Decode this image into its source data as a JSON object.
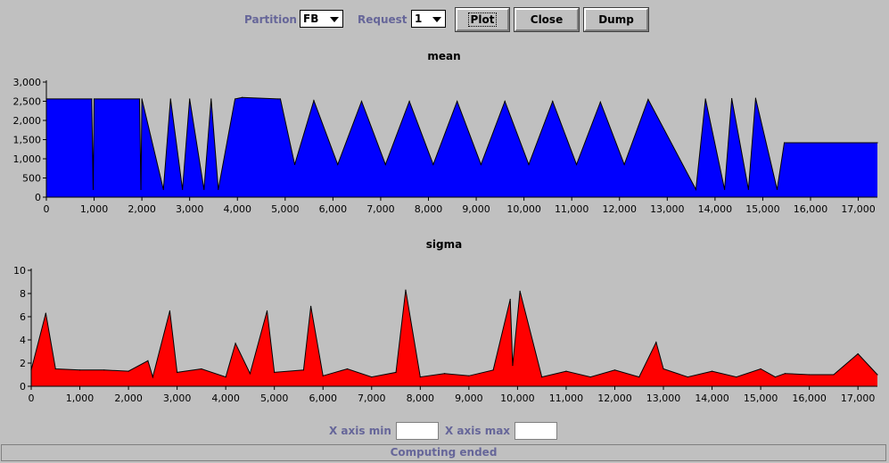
{
  "toolbar": {
    "partition_label": "Partition",
    "partition_value": "FB",
    "request_label": "Request",
    "request_value": "1",
    "plot_label": "Plot",
    "close_label": "Close",
    "dump_label": "Dump"
  },
  "xaxis": {
    "min_label": "X axis min",
    "max_label": "X axis max",
    "min_value": "",
    "max_value": ""
  },
  "status": "Computing ended",
  "colors": {
    "mean_fill": "#0000ff",
    "sigma_fill": "#ff0000",
    "line": "#000000",
    "label": "#666699"
  },
  "chart_data": [
    {
      "type": "area",
      "title": "mean",
      "xlabel": "",
      "ylabel": "",
      "xlim": [
        0,
        17400
      ],
      "ylim": [
        0,
        3000
      ],
      "xticks": [
        "0",
        "1,000",
        "2,000",
        "3,000",
        "4,000",
        "5,000",
        "6,000",
        "7,000",
        "8,000",
        "9,000",
        "10,000",
        "11,000",
        "12,000",
        "13,000",
        "14,000",
        "15,000",
        "16,000",
        "17,000"
      ],
      "yticks": [
        "0",
        "500",
        "1,000",
        "1,500",
        "2,000",
        "2,500",
        "3,000"
      ],
      "series": [
        {
          "x": [
            0,
            950,
            980,
            1000,
            1950,
            1980,
            2000,
            2450,
            2600,
            2850,
            3000,
            3300,
            3450,
            3600,
            3950,
            4100,
            4850,
            4900,
            5200,
            5600,
            6100,
            6600,
            7100,
            7600,
            8100,
            8600,
            9100,
            9600,
            10100,
            10600,
            11100,
            11600,
            12100,
            12600,
            13600,
            13800,
            14200,
            14350,
            14700,
            14850,
            15300,
            15450,
            17400
          ],
          "y": [
            2560,
            2560,
            200,
            2560,
            2560,
            200,
            2560,
            200,
            2560,
            200,
            2560,
            200,
            2560,
            200,
            2560,
            2600,
            2560,
            2560,
            850,
            2520,
            850,
            2500,
            850,
            2500,
            850,
            2500,
            850,
            2500,
            850,
            2500,
            850,
            2480,
            850,
            2550,
            200,
            2560,
            200,
            2570,
            200,
            2580,
            200,
            1420,
            1420
          ]
        }
      ]
    },
    {
      "type": "area",
      "title": "sigma",
      "xlabel": "",
      "ylabel": "",
      "xlim": [
        0,
        17400
      ],
      "ylim": [
        0,
        10
      ],
      "xticks": [
        "0",
        "1,000",
        "2,000",
        "3,000",
        "4,000",
        "5,000",
        "6,000",
        "7,000",
        "8,000",
        "9,000",
        "10,000",
        "11,000",
        "12,000",
        "13,000",
        "14,000",
        "15,000",
        "16,000",
        "17,000"
      ],
      "yticks": [
        "0",
        "2",
        "4",
        "6",
        "8",
        "10"
      ],
      "series": [
        {
          "x": [
            0,
            300,
            500,
            1000,
            1500,
            2000,
            2400,
            2500,
            2850,
            3000,
            3500,
            4000,
            4200,
            4500,
            4850,
            5000,
            5600,
            5750,
            6000,
            6500,
            7000,
            7500,
            7700,
            8000,
            8500,
            9000,
            9500,
            9850,
            9900,
            10050,
            10500,
            11000,
            11500,
            12000,
            12500,
            12850,
            13000,
            13500,
            14000,
            14500,
            15000,
            15300,
            15500,
            16000,
            16500,
            17000,
            17400
          ],
          "y": [
            1.4,
            6.3,
            1.5,
            1.4,
            1.4,
            1.3,
            2.2,
            0.8,
            6.5,
            1.2,
            1.5,
            0.8,
            3.7,
            1.1,
            6.5,
            1.2,
            1.4,
            6.9,
            0.9,
            1.5,
            0.8,
            1.2,
            8.3,
            0.8,
            1.1,
            0.9,
            1.4,
            7.5,
            1.8,
            8.2,
            0.8,
            1.3,
            0.8,
            1.4,
            0.8,
            3.8,
            1.5,
            0.8,
            1.3,
            0.8,
            1.5,
            0.8,
            1.1,
            1.0,
            1.0,
            2.8,
            1.0
          ]
        }
      ]
    }
  ]
}
